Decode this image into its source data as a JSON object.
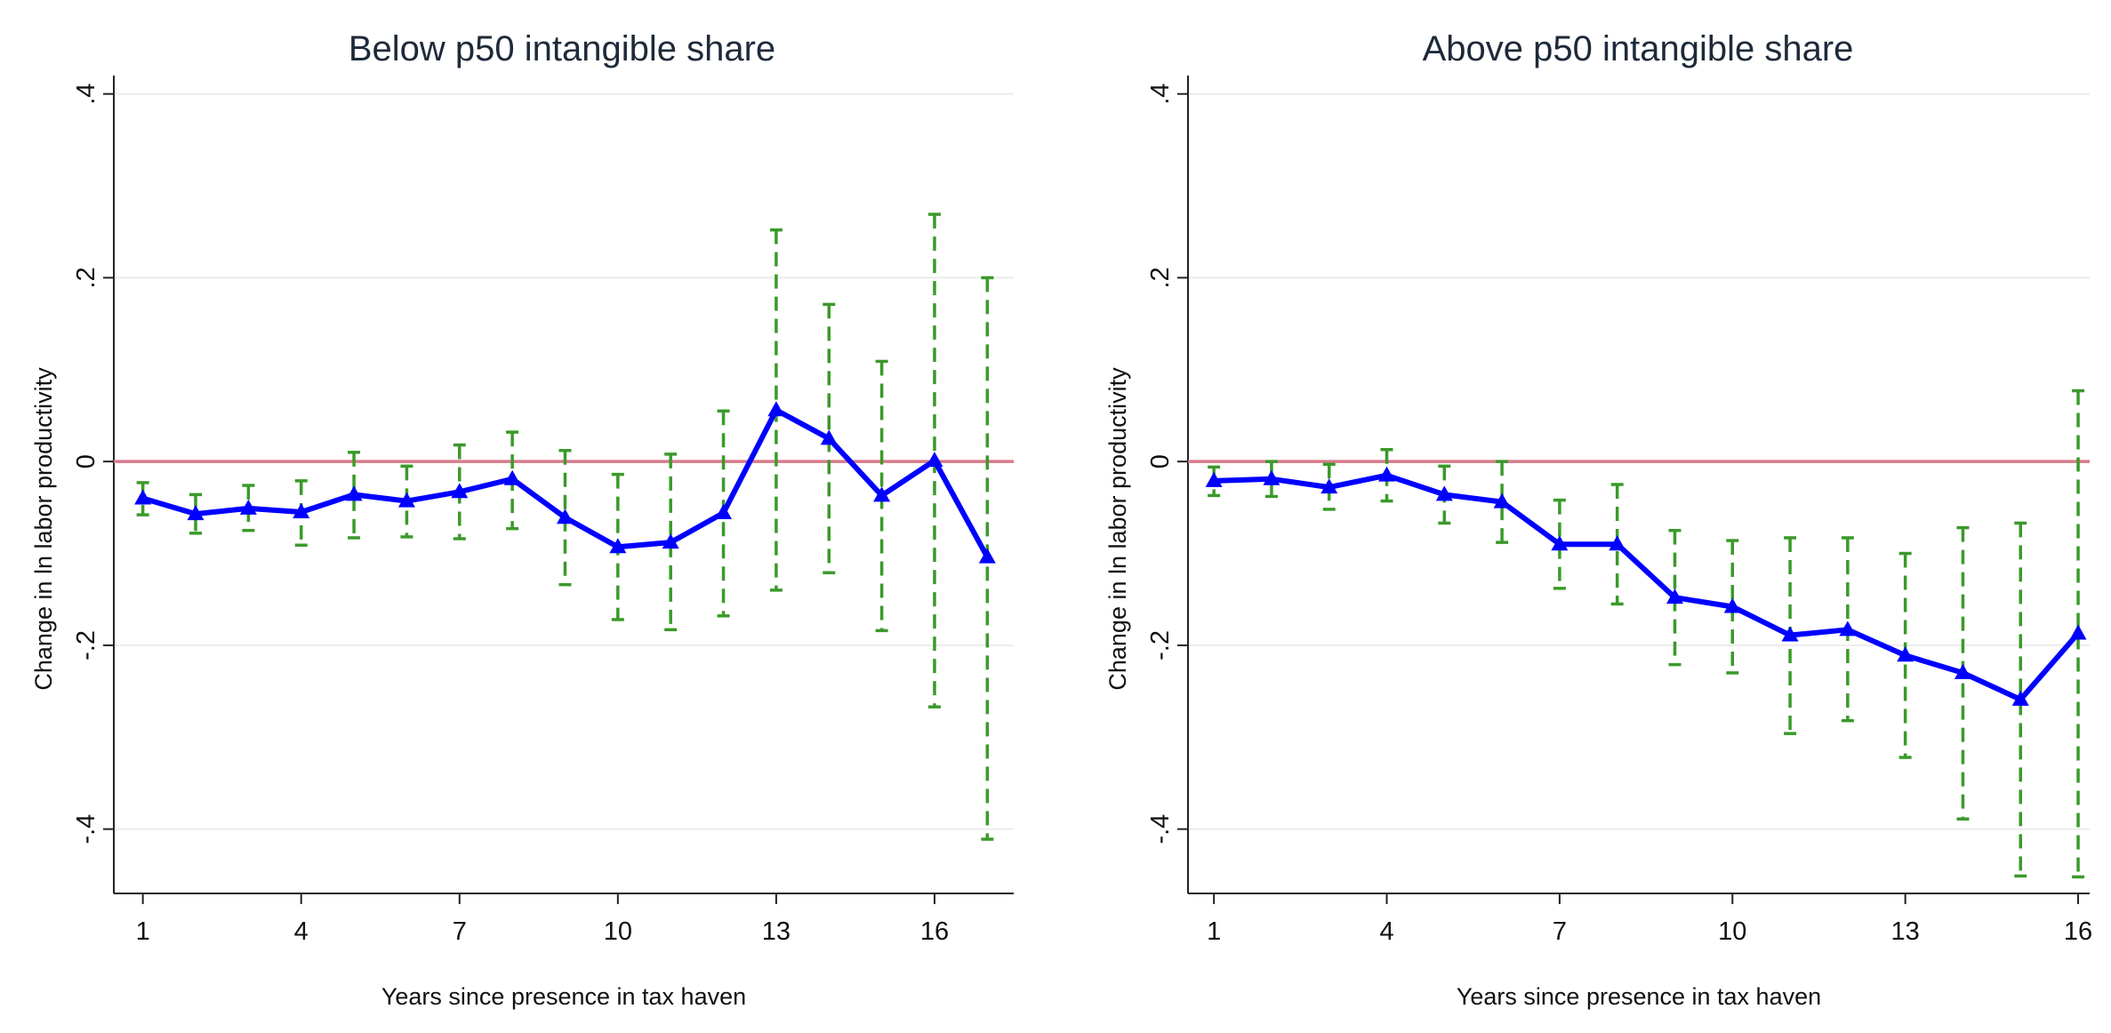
{
  "chart_data": [
    {
      "type": "line",
      "title": "Below p50 intangible share",
      "xlabel": "Years since presence in tax haven",
      "ylabel": "Change in ln labor productivity",
      "x_ticks": [
        1,
        4,
        7,
        10,
        13,
        16
      ],
      "x_tick_labels": [
        "1",
        "4",
        "7",
        "10",
        "13",
        "16"
      ],
      "y_ticks": [
        -0.4,
        -0.2,
        0,
        0.2,
        0.4
      ],
      "y_tick_labels": [
        "-.4",
        "-.2",
        "0",
        ".2",
        ".4"
      ],
      "xlim": [
        0.45,
        17.5
      ],
      "ylim": [
        -0.47,
        0.42
      ],
      "reference_line": 0,
      "grid": "horizontal",
      "colors": {
        "series": "#0000ff",
        "ci": "#3a9a2a",
        "reference": "#d87a8a",
        "grid": "#ececec"
      },
      "x": [
        1,
        2,
        3,
        4,
        5,
        6,
        7,
        8,
        9,
        10,
        11,
        12,
        13,
        14,
        15,
        16,
        17
      ],
      "series": [
        {
          "values": [
            -0.04,
            -0.057,
            -0.051,
            -0.055,
            -0.036,
            -0.043,
            -0.033,
            -0.019,
            -0.061,
            -0.093,
            -0.088,
            -0.056,
            0.056,
            0.025,
            -0.037,
            0.001,
            -0.104
          ],
          "ci_lower": [
            -0.058,
            -0.078,
            -0.075,
            -0.091,
            -0.083,
            -0.082,
            -0.084,
            -0.073,
            -0.134,
            -0.172,
            -0.183,
            -0.168,
            -0.14,
            -0.121,
            -0.184,
            -0.267,
            -0.411
          ],
          "ci_upper": [
            -0.023,
            -0.036,
            -0.026,
            -0.021,
            0.01,
            -0.005,
            0.018,
            0.032,
            0.012,
            -0.014,
            0.008,
            0.055,
            0.252,
            0.171,
            0.109,
            0.269,
            0.2
          ]
        }
      ]
    },
    {
      "type": "line",
      "title": "Above p50 intangible share",
      "xlabel": "Years since presence in tax haven",
      "ylabel": "Change in ln labor productivity",
      "x_ticks": [
        1,
        4,
        7,
        10,
        13,
        16
      ],
      "x_tick_labels": [
        "1",
        "4",
        "7",
        "10",
        "13",
        "16"
      ],
      "y_ticks": [
        -0.4,
        -0.2,
        0,
        0.2,
        0.4
      ],
      "y_tick_labels": [
        "-.4",
        "-.2",
        "0",
        ".2",
        ".4"
      ],
      "xlim": [
        0.55,
        16.2
      ],
      "ylim": [
        -0.47,
        0.42
      ],
      "reference_line": 0,
      "grid": "horizontal",
      "colors": {
        "series": "#0000ff",
        "ci": "#3a9a2a",
        "reference": "#d87a8a",
        "grid": "#ececec"
      },
      "x": [
        1,
        2,
        3,
        4,
        5,
        6,
        7,
        8,
        9,
        10,
        11,
        12,
        13,
        14,
        15,
        16
      ],
      "series": [
        {
          "values": [
            -0.021,
            -0.019,
            -0.028,
            -0.015,
            -0.036,
            -0.044,
            -0.09,
            -0.09,
            -0.148,
            -0.158,
            -0.189,
            -0.183,
            -0.211,
            -0.23,
            -0.259,
            -0.187
          ],
          "ci_lower": [
            -0.037,
            -0.038,
            -0.052,
            -0.043,
            -0.067,
            -0.088,
            -0.138,
            -0.155,
            -0.221,
            -0.23,
            -0.296,
            -0.282,
            -0.322,
            -0.389,
            -0.451,
            -0.452
          ],
          "ci_upper": [
            -0.006,
            0.0,
            -0.003,
            0.013,
            -0.005,
            0.0,
            -0.042,
            -0.025,
            -0.075,
            -0.086,
            -0.083,
            -0.083,
            -0.1,
            -0.072,
            -0.067,
            0.077
          ]
        }
      ]
    }
  ]
}
